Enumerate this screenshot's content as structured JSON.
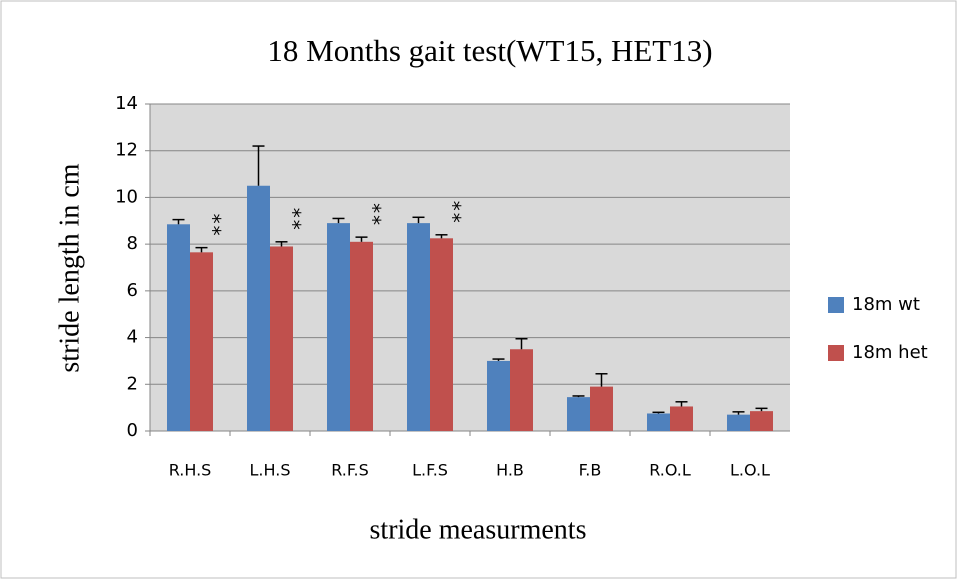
{
  "chart_data": {
    "type": "bar",
    "title": "18 Months gait test(WT15, HET13)",
    "x_label": "stride measurments",
    "y_label": "stride length in cm",
    "categories": [
      "R.H.S",
      "L.H.S",
      "R.F.S",
      "L.F.S",
      "H.B",
      "F.B",
      "R.O.L",
      "L.O.L"
    ],
    "series": [
      {
        "name": "18m wt",
        "color": "#4f81bd",
        "values": [
          8.85,
          10.5,
          8.9,
          8.9,
          3.0,
          1.45,
          0.75,
          0.7
        ],
        "errors": [
          0.2,
          1.7,
          0.2,
          0.25,
          0.08,
          0.05,
          0.05,
          0.12
        ]
      },
      {
        "name": "18m het",
        "color": "#c0504d",
        "values": [
          7.65,
          7.9,
          8.1,
          8.25,
          3.5,
          1.9,
          1.05,
          0.85
        ],
        "errors": [
          0.2,
          0.2,
          0.2,
          0.15,
          0.45,
          0.55,
          0.2,
          0.12
        ]
      }
    ],
    "annotations": [
      {
        "text": "**",
        "x": "R.H.S"
      },
      {
        "text": "**",
        "x": "L.H.S"
      },
      {
        "text": "**",
        "x": "R.F.S"
      },
      {
        "text": "**",
        "x": "L.F.S"
      }
    ],
    "ylim": [
      0,
      14
    ],
    "yticks": [
      0,
      2,
      4,
      6,
      8,
      10,
      12,
      14
    ],
    "grid": true,
    "legend": "right"
  }
}
